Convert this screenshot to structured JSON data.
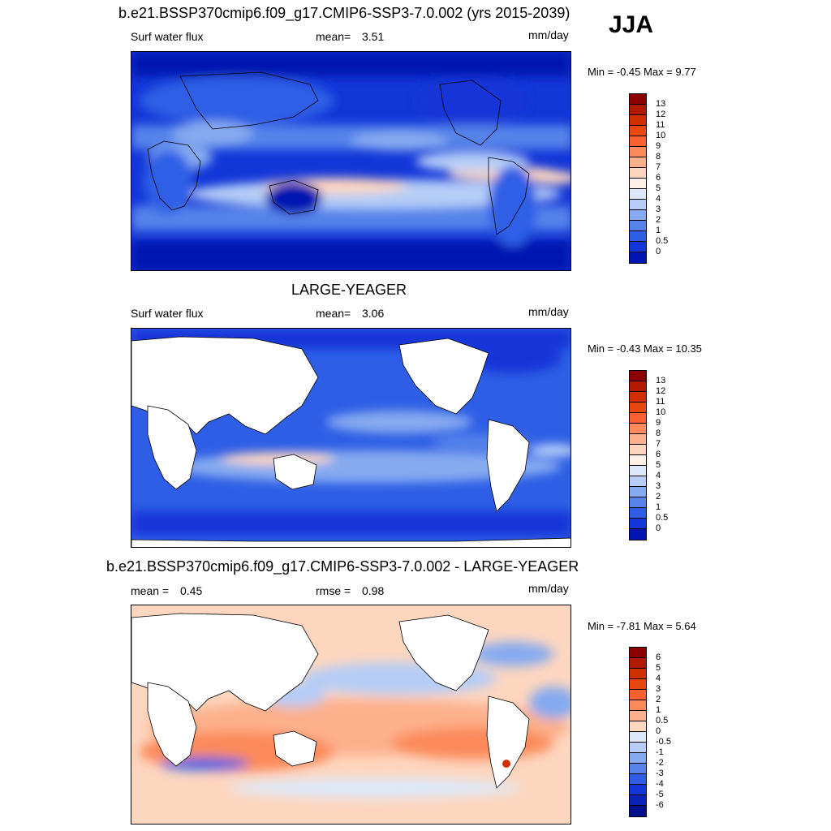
{
  "season": "JJA",
  "panels": [
    {
      "title": "b.e21.BSSP370cmip6.f09_g17.CMIP6-SSP3-7.0.002 (yrs 2015-2039)",
      "left_label": "Surf water flux",
      "mid_label": "mean=",
      "mid_value": "3.51",
      "units": "mm/day",
      "minmax": "Min =  -0.45 Max =   9.77",
      "ocean_only": false,
      "colorbar_labels": [
        "13",
        "12",
        "11",
        "10",
        "9",
        "8",
        "7",
        "6",
        "5",
        "4",
        "3",
        "2",
        "1",
        "0.5",
        "0"
      ]
    },
    {
      "title": "LARGE-YEAGER",
      "left_label": "Surf water flux",
      "mid_label": "mean=",
      "mid_value": "3.06",
      "units": "mm/day",
      "minmax": "Min =  -0.43 Max =  10.35",
      "ocean_only": true,
      "colorbar_labels": [
        "13",
        "12",
        "11",
        "10",
        "9",
        "8",
        "7",
        "6",
        "5",
        "4",
        "3",
        "2",
        "1",
        "0.5",
        "0"
      ]
    },
    {
      "title": "b.e21.BSSP370cmip6.f09_g17.CMIP6-SSP3-7.0.002 - LARGE-YEAGER",
      "left_label": "mean =",
      "left_value": "0.45",
      "mid_label": "rmse =",
      "mid_value": "0.98",
      "units": "mm/day",
      "minmax": "Min =  -7.81 Max =   5.64",
      "ocean_only": true,
      "colorbar_labels": [
        "6",
        "5",
        "4",
        "3",
        "2",
        "1",
        "0.5",
        "0",
        "-0.5",
        "-1",
        "-2",
        "-3",
        "-4",
        "-5",
        "-6"
      ]
    }
  ],
  "colors": {
    "abs_scale": [
      "#8b0000",
      "#b21a00",
      "#d03000",
      "#e84810",
      "#f86030",
      "#fc8a5a",
      "#fdb08c",
      "#fdd6bf",
      "#fdf0e6",
      "#dde9fa",
      "#b5cdf7",
      "#85aaf0",
      "#5583ea",
      "#2e5ee6",
      "#1236d8",
      "#0015b0"
    ],
    "diff_scale": [
      "#8b0000",
      "#b21a00",
      "#d03000",
      "#e84810",
      "#f86030",
      "#fc8a5a",
      "#fdb08c",
      "#fdd6bf",
      "#dde9fa",
      "#b5cdf7",
      "#85aaf0",
      "#5583ea",
      "#2e5ee6",
      "#1236d8",
      "#0a22b8",
      "#00108c"
    ],
    "land_fill": "#ffffff"
  }
}
